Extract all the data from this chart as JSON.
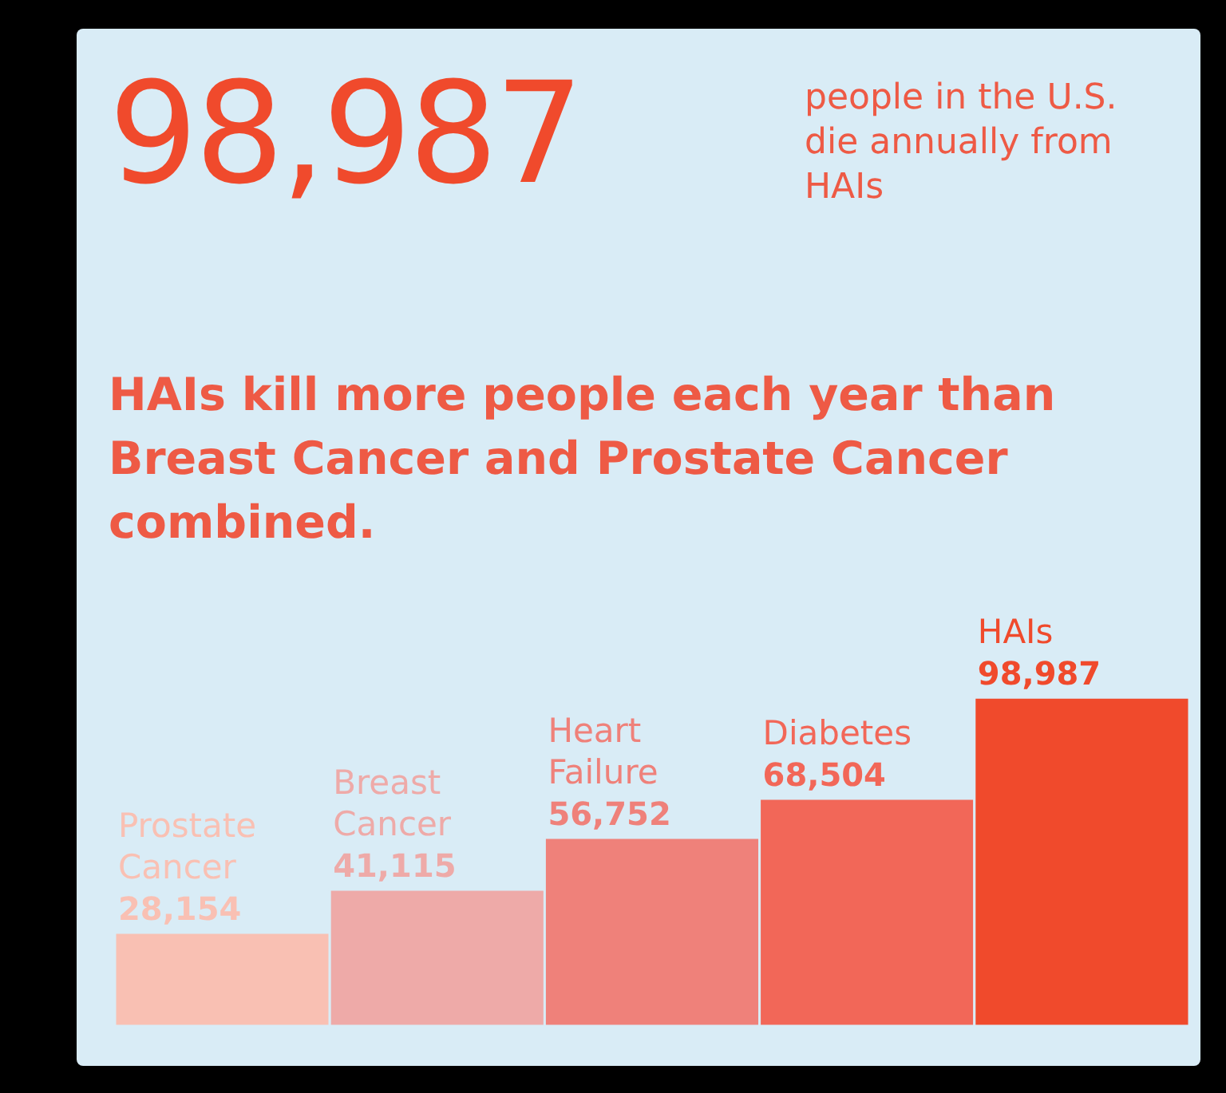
{
  "chart_data": {
    "type": "bar",
    "title": "98,987",
    "subtitle": "people in the U.S. die annually from HAIs",
    "annotations": [
      "HAIs kill more people each year than Breast Cancer and Prostate Cancer combined."
    ],
    "categories": [
      "Prostate Cancer",
      "Breast Cancer",
      "Heart Failure",
      "Diabetes",
      "HAIs"
    ],
    "values": [
      28154,
      41115,
      56752,
      68504,
      98987
    ],
    "value_labels": [
      "28,154",
      "41,115",
      "56,752",
      "68,504",
      "98,987"
    ],
    "colors": [
      "#f9c0b3",
      "#eeaaa8",
      "#ef817a",
      "#f26758",
      "#f04a2c"
    ]
  }
}
